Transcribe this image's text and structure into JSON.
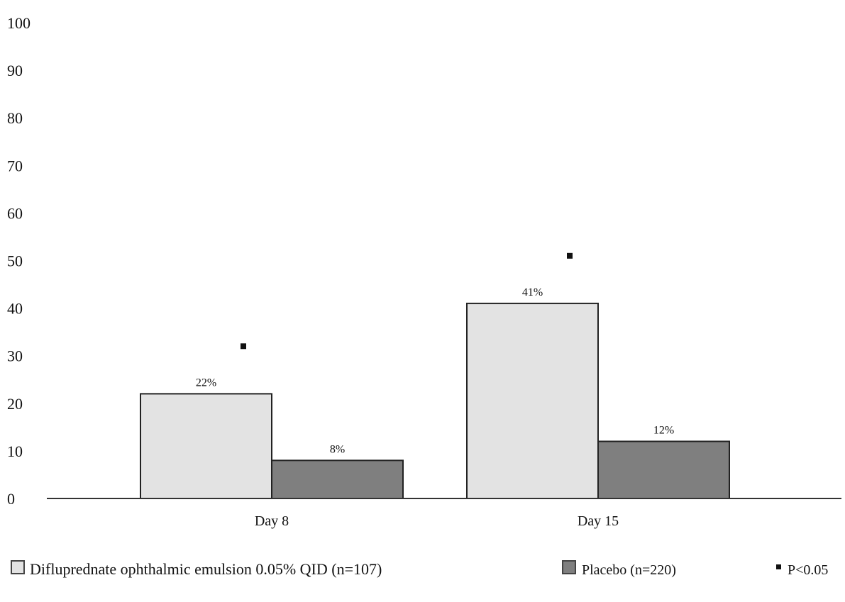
{
  "chart_data": {
    "type": "bar",
    "title": "",
    "xlabel": "",
    "ylabel": "",
    "ylim": [
      0,
      100
    ],
    "yticks": [
      0,
      10,
      20,
      30,
      40,
      50,
      60,
      70,
      80,
      90,
      100
    ],
    "grid": false,
    "legend_position": "bottom",
    "categories": [
      "Day 8",
      "Day 15"
    ],
    "series": [
      {
        "name": "Difluprednate ophthalmic emulsion 0.05% QID (n=107)",
        "values": [
          22,
          41
        ],
        "labels": [
          "22%",
          "41%"
        ],
        "color": "#e3e3e3"
      },
      {
        "name": "Placebo (n=220)",
        "values": [
          8,
          12
        ],
        "labels": [
          "8%",
          "12%"
        ],
        "color": "#7f7f7f"
      }
    ],
    "significance": {
      "marker": "▪",
      "label": "P<0.05",
      "markers": [
        {
          "category": "Day 8",
          "y": 32
        },
        {
          "category": "Day 15",
          "y": 51
        }
      ]
    }
  }
}
